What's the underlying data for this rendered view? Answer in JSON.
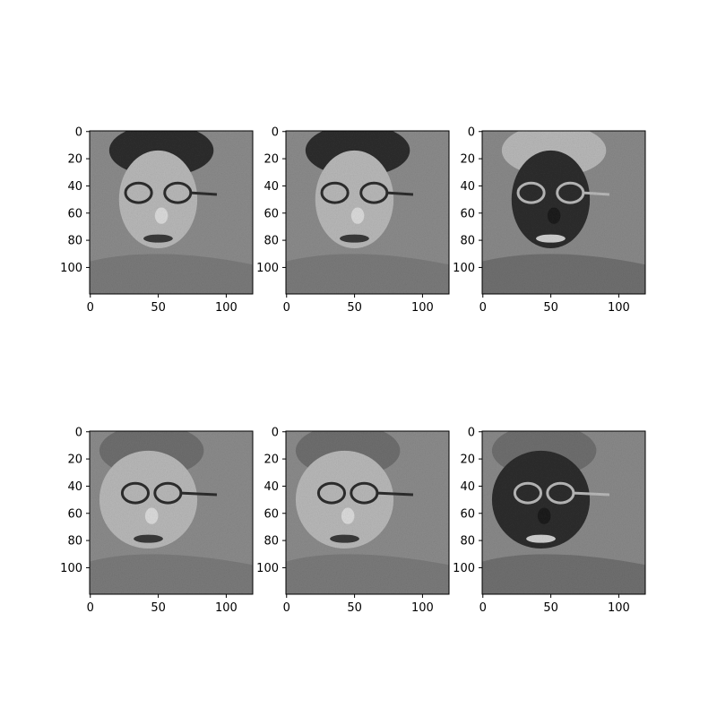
{
  "figure": {
    "background": "#ffffff"
  },
  "chart_data": [
    {
      "type": "heatmap",
      "panel": "row1-col1",
      "description_label": "face-front-variant-1",
      "xlim": [
        0,
        119
      ],
      "ylim": [
        119,
        0
      ],
      "xticks": [
        0,
        50,
        100
      ],
      "yticks": [
        0,
        20,
        40,
        60,
        80,
        100
      ],
      "colormap": "gray",
      "glasses_tint": "dark",
      "face_tone": "light",
      "hair_tone": "dark"
    },
    {
      "type": "heatmap",
      "panel": "row1-col2",
      "description_label": "face-front-variant-2",
      "xlim": [
        0,
        119
      ],
      "ylim": [
        119,
        0
      ],
      "xticks": [
        0,
        50,
        100
      ],
      "yticks": [
        0,
        20,
        40,
        60,
        80,
        100
      ],
      "colormap": "gray",
      "glasses_tint": "dark",
      "face_tone": "light",
      "hair_tone": "dark"
    },
    {
      "type": "heatmap",
      "panel": "row1-col3",
      "description_label": "face-front-inverted",
      "xlim": [
        0,
        119
      ],
      "ylim": [
        119,
        0
      ],
      "xticks": [
        0,
        50,
        100
      ],
      "yticks": [
        0,
        20,
        40,
        60,
        80,
        100
      ],
      "colormap": "gray",
      "glasses_tint": "light",
      "face_tone": "dark",
      "hair_tone": "light"
    },
    {
      "type": "heatmap",
      "panel": "row2-col1",
      "description_label": "face-profile-variant-1",
      "xlim": [
        0,
        119
      ],
      "ylim": [
        119,
        0
      ],
      "xticks": [
        0,
        50,
        100
      ],
      "yticks": [
        0,
        20,
        40,
        60,
        80,
        100
      ],
      "colormap": "gray",
      "glasses_tint": "dark",
      "face_tone": "light",
      "hair_tone": "mid"
    },
    {
      "type": "heatmap",
      "panel": "row2-col2",
      "description_label": "face-profile-variant-2",
      "xlim": [
        0,
        119
      ],
      "ylim": [
        119,
        0
      ],
      "xticks": [
        0,
        50,
        100
      ],
      "yticks": [
        0,
        20,
        40,
        60,
        80,
        100
      ],
      "colormap": "gray",
      "glasses_tint": "dark",
      "face_tone": "light",
      "hair_tone": "mid"
    },
    {
      "type": "heatmap",
      "panel": "row2-col3",
      "description_label": "face-profile-inverted",
      "xlim": [
        0,
        119
      ],
      "ylim": [
        119,
        0
      ],
      "xticks": [
        0,
        50,
        100
      ],
      "yticks": [
        0,
        20,
        40,
        60,
        80,
        100
      ],
      "colormap": "gray",
      "glasses_tint": "light",
      "face_tone": "dark",
      "hair_tone": "mid"
    }
  ]
}
